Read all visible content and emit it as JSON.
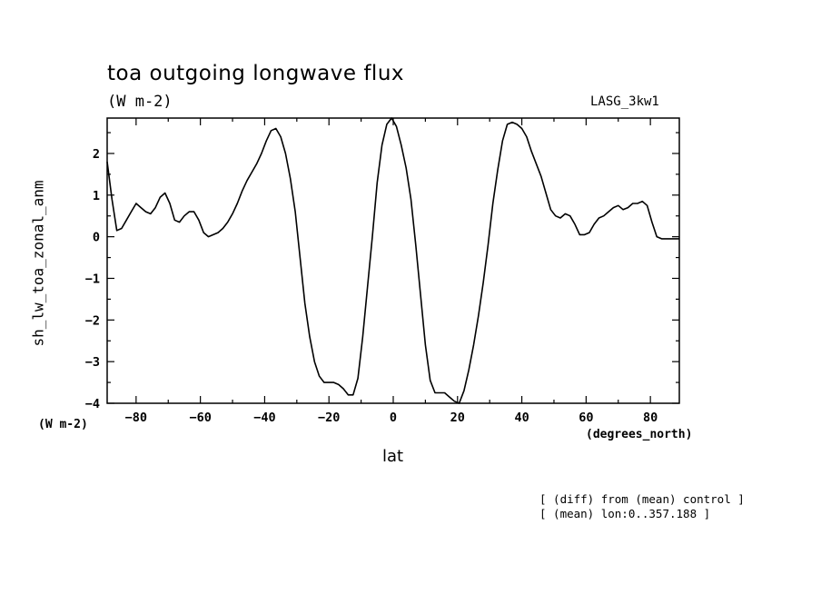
{
  "chart_data": {
    "type": "line",
    "title": "toa outgoing longwave flux",
    "subtitle": "(W m-2)",
    "run_label": "LASG_3kw1",
    "ylabel": "sh_lw_toa_zonal_anm",
    "y_units": "(W m-2)",
    "xlabel": "lat",
    "x_units": "(degrees_north)",
    "xlim": [
      -89,
      89
    ],
    "ylim": [
      -4,
      2.85
    ],
    "x_ticks": [
      -80,
      -60,
      -40,
      -20,
      0,
      20,
      40,
      60,
      80
    ],
    "x_tick_labels": [
      "-80",
      "-60",
      "-40",
      "-20",
      "0",
      "20",
      "40",
      "60",
      "80"
    ],
    "y_ticks": [
      -4,
      -3,
      -2,
      -1,
      0,
      1,
      2
    ],
    "y_tick_labels": [
      "-4",
      "-3",
      "-2",
      "-1",
      "0",
      "1",
      "2"
    ],
    "notes": [
      "[ (diff) from (mean) control ]",
      "[ (mean) lon:0..357.188 ]"
    ],
    "grid": false,
    "series": [
      {
        "x": [
          -89,
          -87.5,
          -86,
          -84.5,
          -83,
          -81.5,
          -80,
          -78.5,
          -77,
          -75.5,
          -74,
          -72.5,
          -71,
          -69.5,
          -68,
          -66.5,
          -65,
          -63.5,
          -62,
          -60.5,
          -59,
          -57.5,
          -56,
          -54.5,
          -53,
          -51.5,
          -50,
          -48.5,
          -47,
          -45.5,
          -44,
          -42.5,
          -41,
          -39.5,
          -38,
          -36.5,
          -35,
          -33.5,
          -32,
          -30.5,
          -29,
          -27.5,
          -26,
          -24.5,
          -23,
          -21.5,
          -20,
          -18.5,
          -17,
          -15.5,
          -14,
          -12.5,
          -11,
          -9.5,
          -8,
          -6.5,
          -5,
          -3.5,
          -2,
          -0.5,
          1,
          2.5,
          4,
          5.5,
          7,
          8.5,
          10,
          11.5,
          13,
          14.5,
          16,
          17.5,
          19,
          20.5,
          22,
          23.5,
          25,
          26.5,
          28,
          29.5,
          31,
          32.5,
          34,
          35.5,
          37,
          38.5,
          40,
          41.5,
          43,
          44.5,
          46,
          47.5,
          49,
          50.5,
          52,
          53.5,
          55,
          56.5,
          58,
          59.5,
          61,
          62.5,
          64,
          65.5,
          67,
          68.5,
          70,
          71.5,
          73,
          74.5,
          76,
          77.5,
          79,
          80.5,
          82,
          83.5,
          85,
          86.5,
          88,
          89
        ],
        "y": [
          1.8,
          0.9,
          0.15,
          0.2,
          0.4,
          0.6,
          0.8,
          0.7,
          0.6,
          0.55,
          0.7,
          0.95,
          1.05,
          0.8,
          0.4,
          0.35,
          0.5,
          0.6,
          0.6,
          0.4,
          0.1,
          0.0,
          0.05,
          0.1,
          0.2,
          0.35,
          0.55,
          0.8,
          1.1,
          1.35,
          1.55,
          1.75,
          2.0,
          2.3,
          2.55,
          2.6,
          2.4,
          2.0,
          1.4,
          0.6,
          -0.5,
          -1.6,
          -2.4,
          -3.0,
          -3.35,
          -3.5,
          -3.5,
          -3.5,
          -3.55,
          -3.65,
          -3.8,
          -3.8,
          -3.4,
          -2.4,
          -1.2,
          0.0,
          1.3,
          2.2,
          2.7,
          2.9,
          2.65,
          2.2,
          1.65,
          0.9,
          -0.2,
          -1.4,
          -2.6,
          -3.45,
          -3.75,
          -3.75,
          -3.75,
          -3.85,
          -3.95,
          -4.0,
          -3.7,
          -3.2,
          -2.6,
          -1.9,
          -1.1,
          -0.2,
          0.8,
          1.6,
          2.3,
          2.7,
          2.75,
          2.7,
          2.6,
          2.4,
          2.05,
          1.75,
          1.45,
          1.05,
          0.65,
          0.5,
          0.45,
          0.55,
          0.5,
          0.3,
          0.05,
          0.05,
          0.1,
          0.3,
          0.45,
          0.5,
          0.6,
          0.7,
          0.75,
          0.65,
          0.7,
          0.8,
          0.8,
          0.85,
          0.75,
          0.35,
          0.0,
          -0.05,
          -0.05,
          -0.05,
          -0.05,
          -0.05
        ]
      }
    ]
  }
}
